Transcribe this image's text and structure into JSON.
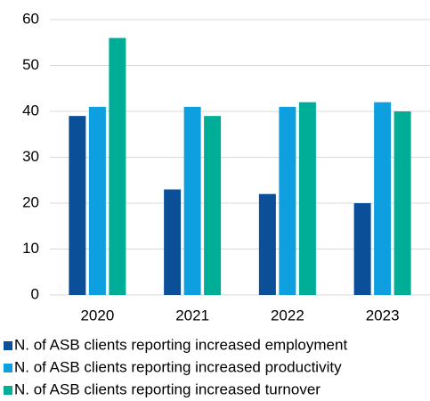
{
  "chart_data": {
    "type": "bar",
    "categories": [
      "2020",
      "2021",
      "2022",
      "2023"
    ],
    "series": [
      {
        "name": "N. of ASB clients reporting increased employment",
        "color": "#0a4f98",
        "values": [
          39,
          23,
          22,
          20
        ]
      },
      {
        "name": "N. of ASB clients reporting increased productivity",
        "color": "#0d9fdf",
        "values": [
          41,
          41,
          41,
          42
        ]
      },
      {
        "name": "N. of ASB clients reporting increased turnover",
        "color": "#00ad97",
        "values": [
          56,
          39,
          42,
          40
        ]
      }
    ],
    "ylim": [
      0,
      60
    ],
    "yticks": [
      0,
      10,
      20,
      30,
      40,
      50,
      60
    ],
    "grid": true,
    "legend": "bottom"
  }
}
